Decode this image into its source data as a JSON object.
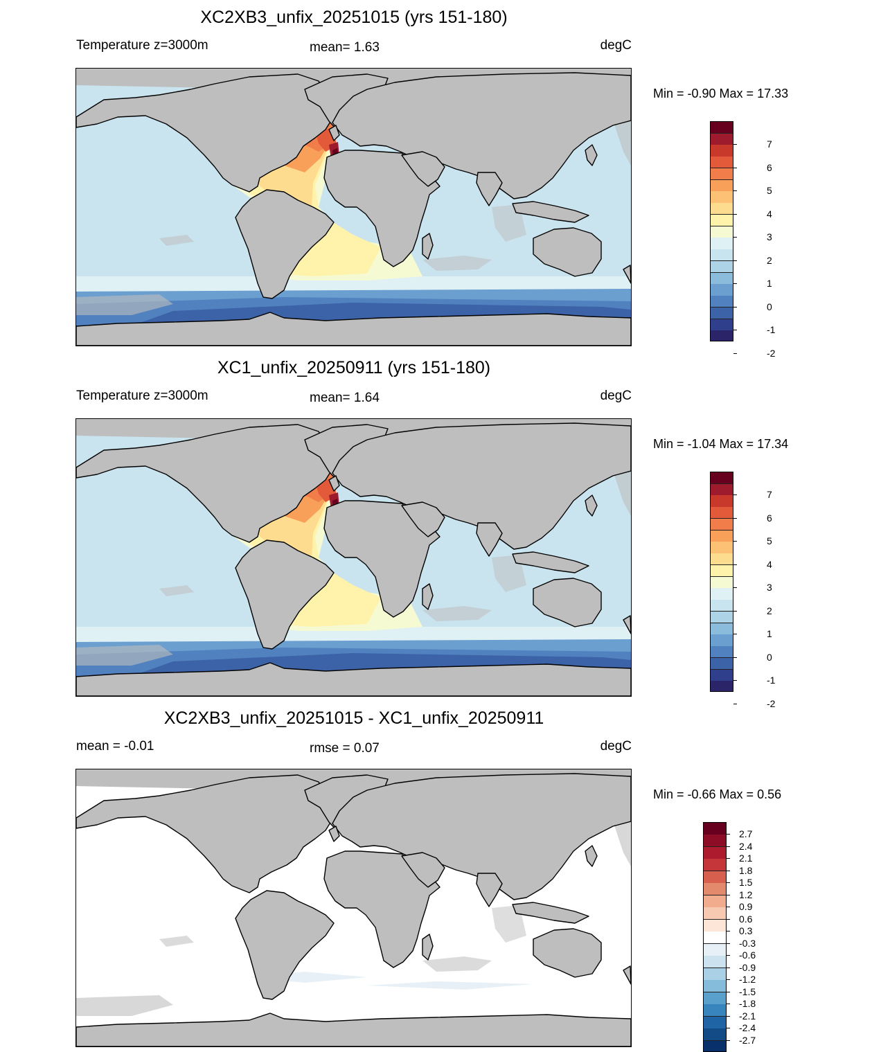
{
  "colors": {
    "land": "#bebebe",
    "coast": "#000000",
    "ocean_default": "#c9e4ef",
    "diff_ocean": "#ffffff"
  },
  "panels": [
    {
      "title": "XC2XB3_unfix_20251015 (yrs 151-180)",
      "left_label": "Temperature z=3000m",
      "center_label": "mean=   1.63",
      "units": "degC",
      "minmax": "Min =  -0.90 Max =  17.33",
      "kind": "field"
    },
    {
      "title": "XC1_unfix_20250911 (yrs 151-180)",
      "left_label": "Temperature z=3000m",
      "center_label": "mean=   1.64",
      "units": "degC",
      "minmax": "Min =  -1.04 Max =  17.34",
      "kind": "field"
    },
    {
      "title": "XC2XB3_unfix_20251015 - XC1_unfix_20250911",
      "left_label": "mean =  -0.01",
      "center_label": "rmse =   0.07",
      "units": "degC",
      "minmax": "Min =  -0.66 Max =   0.56",
      "kind": "diff"
    }
  ],
  "colorbar_field": {
    "labels": [
      "7",
      "6",
      "5",
      "4",
      "3",
      "2",
      "1",
      "0",
      "-1",
      "-2"
    ],
    "colors": [
      "#67001f",
      "#9e1a2d",
      "#c8392c",
      "#e25a3a",
      "#f07d4a",
      "#f8a05a",
      "#fcc175",
      "#fedc8f",
      "#fff2aa",
      "#f6fad2",
      "#e0f1f5",
      "#c8e4ef",
      "#acd3e6",
      "#8bbcdb",
      "#6b9fcf",
      "#5182bf",
      "#3c63a8",
      "#303f8c",
      "#2b2468"
    ]
  },
  "colorbar_diff": {
    "labels": [
      "2.7",
      "2.4",
      "2.1",
      "1.8",
      "1.5",
      "1.2",
      "0.9",
      "0.6",
      "0.3",
      "-0.3",
      "-0.6",
      "-0.9",
      "-1.2",
      "-1.5",
      "-1.8",
      "-2.1",
      "-2.4",
      "-2.7"
    ],
    "colors": [
      "#67001f",
      "#8c0d25",
      "#ac1c2e",
      "#c4363a",
      "#d6604d",
      "#e48a6c",
      "#f1ac8d",
      "#f8c9b1",
      "#fde5d8",
      "#ffffff",
      "#e6f0f6",
      "#cce3ef",
      "#a9d0e5",
      "#85bcdb",
      "#5aa0cc",
      "#3884bd",
      "#1f64a5",
      "#134b87",
      "#08306b"
    ]
  }
}
